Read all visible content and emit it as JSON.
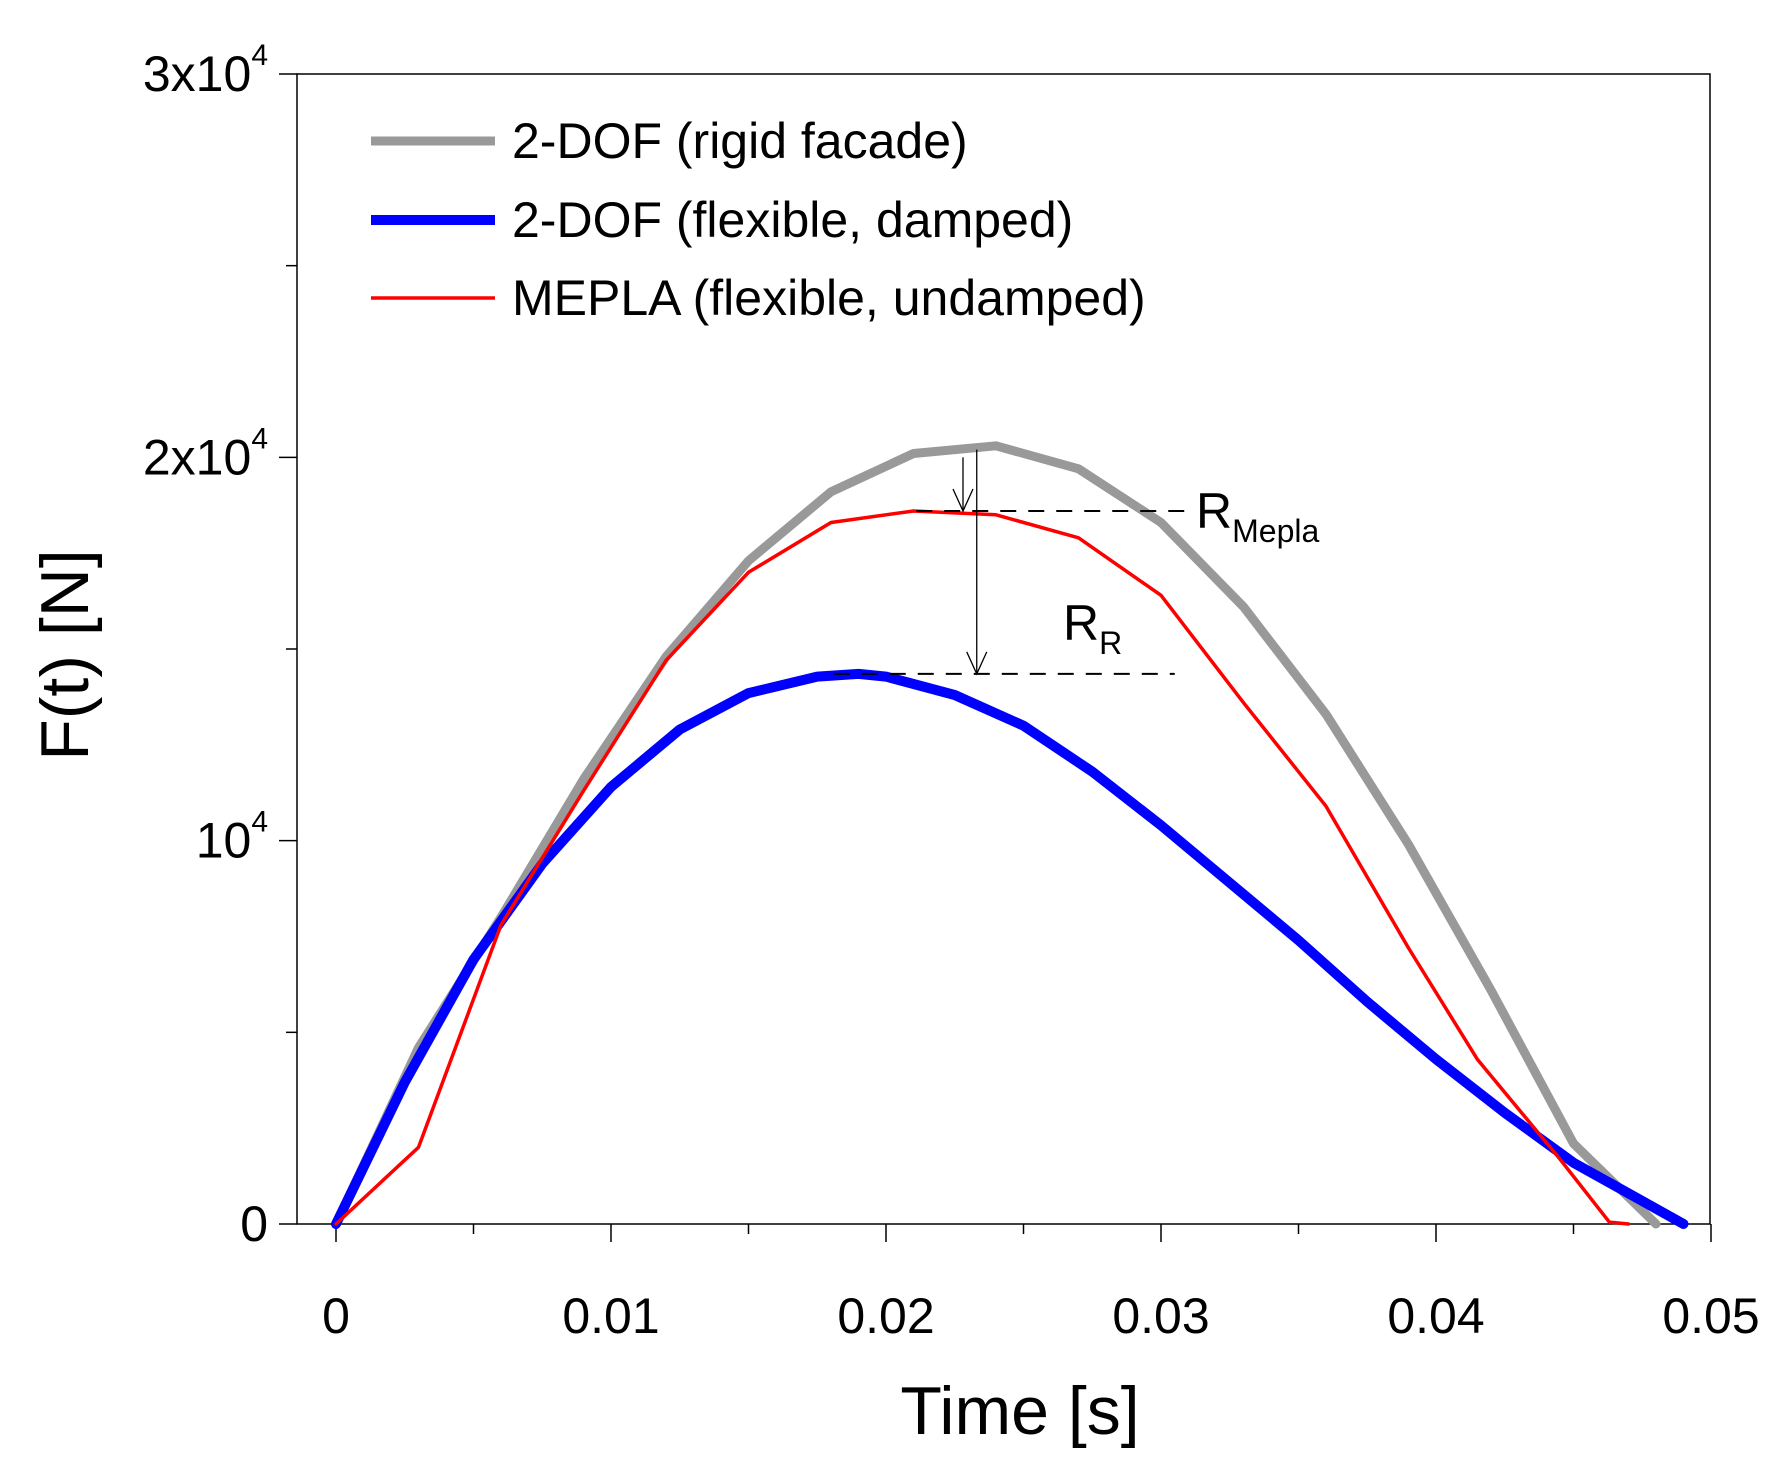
{
  "chart_data": {
    "type": "line",
    "xlabel": "Time [s]",
    "ylabel": "F(t)  [N]",
    "xlim": [
      0,
      0.05
    ],
    "ylim": [
      0,
      30000
    ],
    "x_ticks": [
      0,
      0.01,
      0.02,
      0.03,
      0.04,
      0.05
    ],
    "x_tick_labels": [
      "0",
      "0.01",
      "0.02",
      "0.03",
      "0.04",
      "0.05"
    ],
    "x_minor_ticks": [
      0.005,
      0.015,
      0.025,
      0.035,
      0.045
    ],
    "y_ticks": [
      0,
      10000,
      20000,
      30000
    ],
    "y_tick_labels": [
      {
        "base": "0",
        "exp": ""
      },
      {
        "base": "10",
        "exp": "4"
      },
      {
        "base": "2x10",
        "exp": "4"
      },
      {
        "base": "3x10",
        "exp": "4"
      }
    ],
    "y_minor_ticks": [
      5000,
      15000,
      25000
    ],
    "grid": false,
    "legend_position": "top-left",
    "series": [
      {
        "name": "2-DOF (rigid facade)",
        "color": "#999999",
        "width": 9,
        "points": [
          [
            0,
            0
          ],
          [
            0.003,
            4600
          ],
          [
            0.006,
            8000
          ],
          [
            0.009,
            11600
          ],
          [
            0.012,
            14800
          ],
          [
            0.015,
            17300
          ],
          [
            0.018,
            19100
          ],
          [
            0.021,
            20100
          ],
          [
            0.024,
            20300
          ],
          [
            0.027,
            19700
          ],
          [
            0.03,
            18300
          ],
          [
            0.033,
            16100
          ],
          [
            0.036,
            13300
          ],
          [
            0.039,
            9900
          ],
          [
            0.042,
            6100
          ],
          [
            0.045,
            2100
          ],
          [
            0.048,
            0
          ]
        ]
      },
      {
        "name": "2-DOF (flexible, damped)",
        "color": "#0000ff",
        "width": 10,
        "points": [
          [
            0,
            0
          ],
          [
            0.0025,
            3700
          ],
          [
            0.005,
            6900
          ],
          [
            0.0075,
            9400
          ],
          [
            0.01,
            11400
          ],
          [
            0.0125,
            12900
          ],
          [
            0.015,
            13850
          ],
          [
            0.0175,
            14280
          ],
          [
            0.019,
            14350
          ],
          [
            0.02,
            14280
          ],
          [
            0.0225,
            13800
          ],
          [
            0.025,
            13000
          ],
          [
            0.0275,
            11800
          ],
          [
            0.03,
            10400
          ],
          [
            0.0325,
            8900
          ],
          [
            0.035,
            7400
          ],
          [
            0.0375,
            5800
          ],
          [
            0.04,
            4300
          ],
          [
            0.0425,
            2900
          ],
          [
            0.045,
            1600
          ],
          [
            0.0475,
            600
          ],
          [
            0.049,
            0
          ]
        ]
      },
      {
        "name": "MEPLA (flexible, undamped)",
        "color": "#ff0000",
        "width": 3.5,
        "points": [
          [
            0,
            0
          ],
          [
            0.003,
            2000
          ],
          [
            0.006,
            7800
          ],
          [
            0.009,
            11300
          ],
          [
            0.012,
            14700
          ],
          [
            0.015,
            17000
          ],
          [
            0.018,
            18300
          ],
          [
            0.021,
            18600
          ],
          [
            0.024,
            18500
          ],
          [
            0.027,
            17900
          ],
          [
            0.03,
            16400
          ],
          [
            0.033,
            13600
          ],
          [
            0.036,
            10900
          ],
          [
            0.039,
            7200
          ],
          [
            0.0415,
            4300
          ],
          [
            0.0445,
            1700
          ],
          [
            0.0463,
            50
          ],
          [
            0.047,
            0
          ]
        ]
      }
    ],
    "annotations": [
      {
        "base": "R",
        "sub": "Mepla",
        "y_level": 18600,
        "x_start": 0.0211,
        "x_end": 0.0312,
        "arrow_x": 0.0228,
        "arrow_from": 20000,
        "arrow_to": 18600
      },
      {
        "base": "R",
        "sub": "R",
        "y_level": 14350,
        "x_start": 0.0181,
        "x_end": 0.0305,
        "arrow_x": 0.0233,
        "arrow_from": 20200,
        "arrow_to": 14350
      }
    ]
  }
}
